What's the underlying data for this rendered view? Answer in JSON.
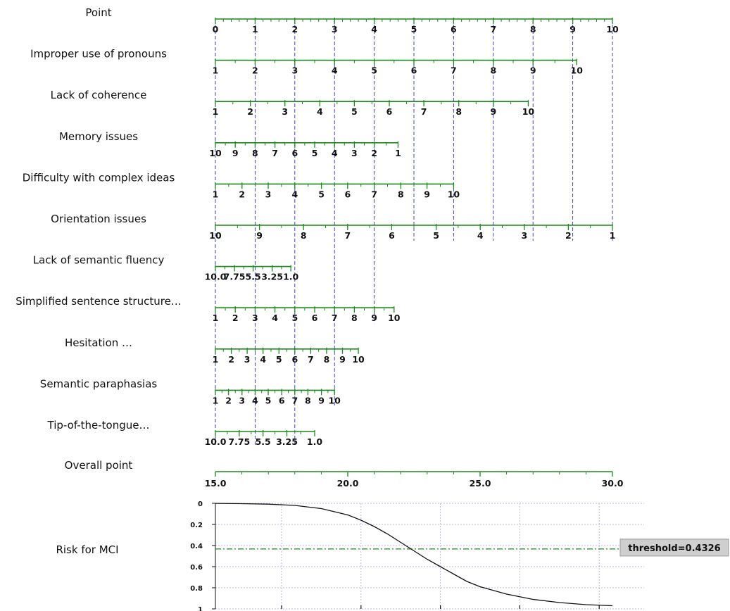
{
  "chart_data": {
    "type": "nomogram",
    "rows": [
      {
        "label": "Point",
        "ticks": [
          "0",
          "1",
          "2",
          "3",
          "4",
          "5",
          "6",
          "7",
          "8",
          "9",
          "10"
        ],
        "points": [
          0,
          1,
          2,
          3,
          4,
          5,
          6,
          7,
          8,
          9,
          10
        ]
      },
      {
        "label": "Improper use of pronouns",
        "ticks": [
          "1",
          "2",
          "3",
          "4",
          "5",
          "6",
          "7",
          "8",
          "9",
          "10"
        ],
        "points": [
          0,
          1,
          2,
          3,
          4,
          5,
          6,
          7,
          8,
          9.1
        ]
      },
      {
        "label": "Lack of coherence",
        "ticks": [
          "1",
          "2",
          "3",
          "4",
          "5",
          "6",
          "7",
          "8",
          "9",
          "10"
        ],
        "points": [
          0,
          0.88,
          1.75,
          2.63,
          3.5,
          4.38,
          5.25,
          6.13,
          7,
          7.88
        ]
      },
      {
        "label": "Memory issues",
        "ticks": [
          "10",
          "9",
          "8",
          "7",
          "6",
          "5",
          "4",
          "3",
          "2",
          "1"
        ],
        "points": [
          0,
          0.5,
          1,
          1.5,
          2,
          2.5,
          3,
          3.5,
          4,
          4.6
        ]
      },
      {
        "label": "Difficulty with complex ideas",
        "ticks": [
          "1",
          "2",
          "3",
          "4",
          "5",
          "6",
          "7",
          "8",
          "9",
          "10"
        ],
        "points": [
          0,
          0.67,
          1.33,
          2,
          2.67,
          3.33,
          4,
          4.67,
          5.33,
          6
        ]
      },
      {
        "label": "Orientation issues",
        "ticks": [
          "10",
          "9",
          "8",
          "7",
          "6",
          "5",
          "4",
          "3",
          "2",
          "1"
        ],
        "points": [
          0,
          1.11,
          2.22,
          3.33,
          4.44,
          5.56,
          6.67,
          7.78,
          8.89,
          10
        ]
      },
      {
        "label": "Lack of semantic fluency",
        "ticks": [
          "10.0",
          "7.75",
          "5.5",
          "3.25",
          "1.0"
        ],
        "points": [
          0,
          0.48,
          0.95,
          1.43,
          1.9
        ]
      },
      {
        "label": "Simplified sentence structure…",
        "ticks": [
          "1",
          "2",
          "3",
          "4",
          "5",
          "6",
          "7",
          "8",
          "9",
          "10"
        ],
        "points": [
          0,
          0.5,
          1,
          1.5,
          2,
          2.5,
          3,
          3.5,
          4,
          4.5
        ]
      },
      {
        "label": "Hesitation …",
        "ticks": [
          "1",
          "2",
          "3",
          "4",
          "5",
          "6",
          "7",
          "8",
          "9",
          "10"
        ],
        "points": [
          0,
          0.4,
          0.8,
          1.2,
          1.6,
          2,
          2.4,
          2.8,
          3.2,
          3.6
        ]
      },
      {
        "label": "Semantic paraphasias",
        "ticks": [
          "1",
          "2",
          "3",
          "4",
          "5",
          "6",
          "7",
          "8",
          "9",
          "10"
        ],
        "points": [
          0,
          0.33,
          0.67,
          1,
          1.33,
          1.67,
          2,
          2.33,
          2.67,
          3
        ]
      },
      {
        "label": "Tip-of-the-tongue…",
        "ticks": [
          "10.0",
          "7.75",
          "5.5",
          "3.25",
          "1.0"
        ],
        "points": [
          0,
          0.6,
          1.2,
          1.8,
          2.5
        ]
      },
      {
        "label": "Overall point",
        "ticks": [
          "15.0",
          "20.0",
          "25.0",
          "30.0"
        ],
        "points": [
          15,
          20,
          25,
          30
        ]
      }
    ],
    "risk": {
      "label": "Risk for MCI",
      "y_ticks": [
        "0",
        "0.2",
        "0.4",
        "0.6",
        "0.8",
        "1"
      ],
      "threshold_label": "threshold=0.4326",
      "threshold": 0.4326,
      "curve_x": [
        15.0,
        16,
        17,
        18,
        19,
        20,
        20.5,
        21,
        21.5,
        22,
        22.5,
        23,
        23.5,
        24,
        24.5,
        25,
        26,
        27,
        28,
        29,
        30.0
      ],
      "curve_y": [
        0.001,
        0.003,
        0.008,
        0.02,
        0.05,
        0.11,
        0.16,
        0.22,
        0.29,
        0.37,
        0.45,
        0.53,
        0.6,
        0.67,
        0.74,
        0.79,
        0.86,
        0.91,
        0.94,
        0.96,
        0.97
      ]
    },
    "guide_points": [
      0,
      1,
      2,
      3,
      4,
      5,
      6,
      7,
      8,
      9,
      10
    ]
  }
}
